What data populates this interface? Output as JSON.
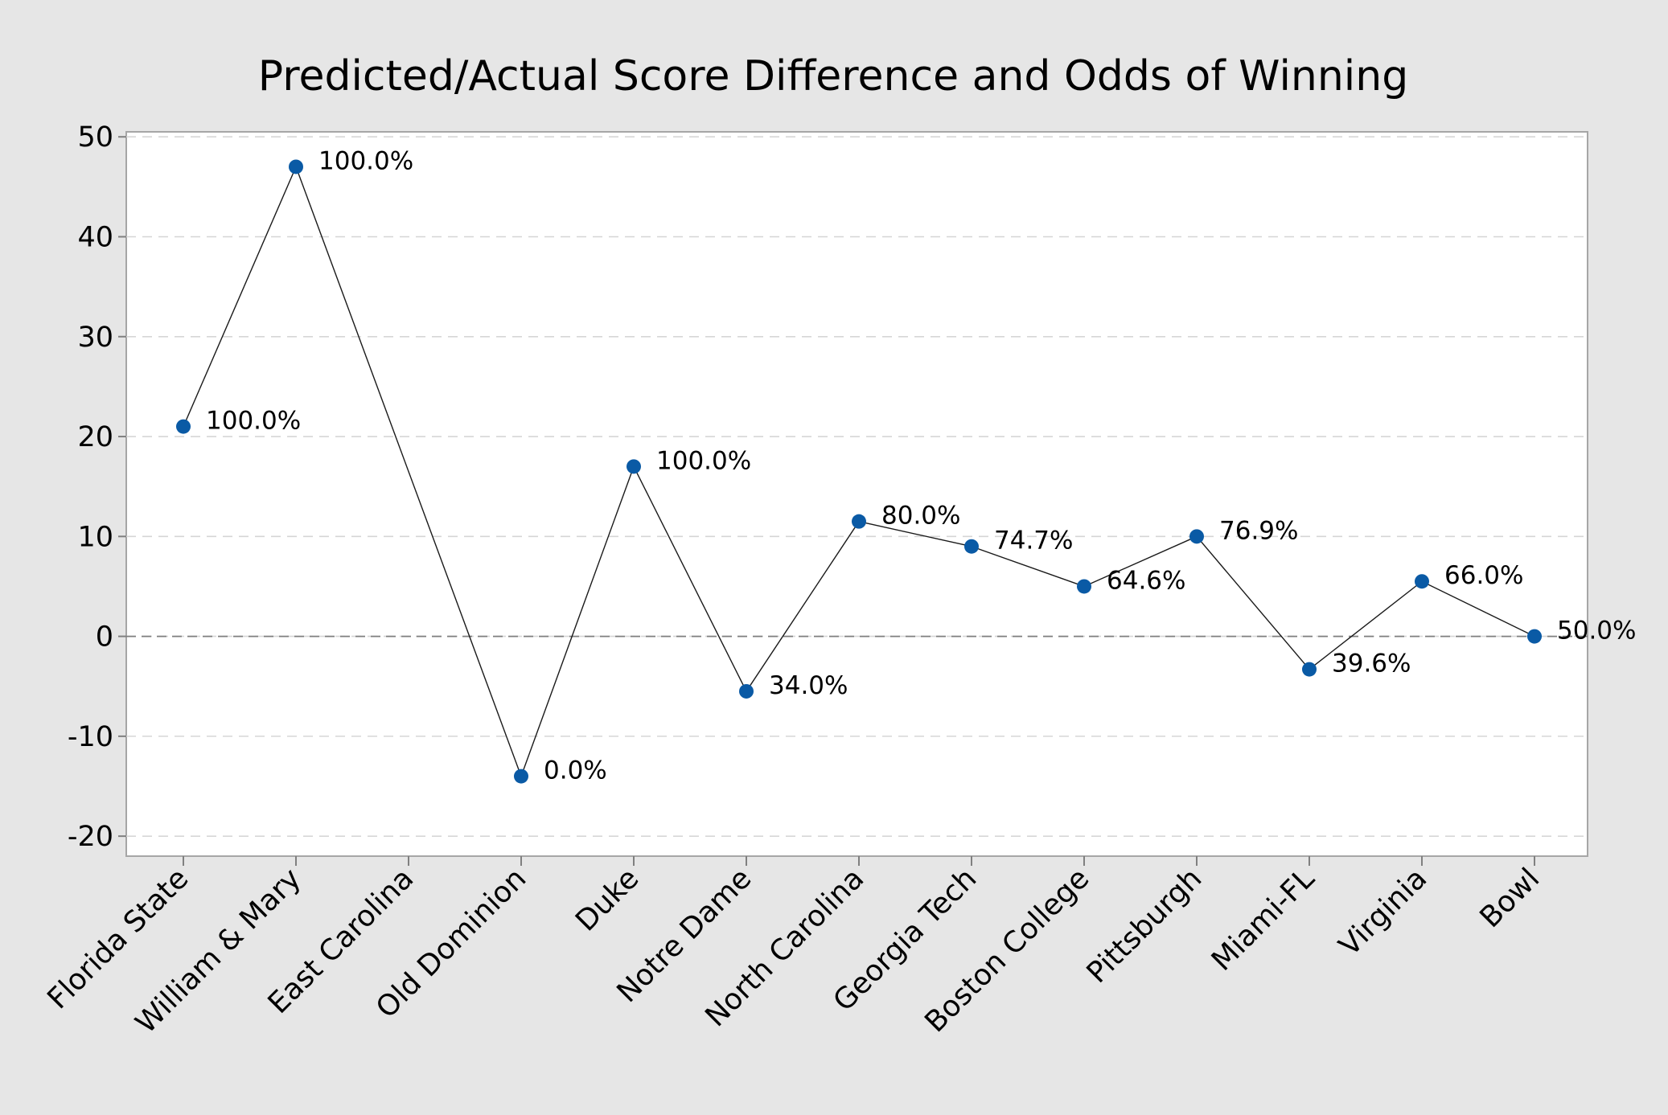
{
  "chart_data": {
    "type": "line",
    "title": "Predicted/Actual Score Difference and Odds of Winning",
    "xlabel": "",
    "ylabel": "",
    "categories": [
      "Florida State",
      "William & Mary",
      "East Carolina",
      "Old Dominion",
      "Duke",
      "Notre Dame",
      "North Carolina",
      "Georgia Tech",
      "Boston College",
      "Pittsburgh",
      "Miami-FL",
      "Virginia",
      "Bowl"
    ],
    "series": [
      {
        "values": [
          21,
          47,
          null,
          -14,
          17,
          -5.5,
          11.5,
          9,
          5,
          10,
          -3.3,
          5.5,
          0
        ],
        "labels": [
          "100.0%",
          "100.0%",
          null,
          "0.0%",
          "100.0%",
          "34.0%",
          "80.0%",
          "74.7%",
          "64.6%",
          "76.9%",
          "39.6%",
          "66.0%",
          "50.0%"
        ],
        "color": "#0a5aa5"
      }
    ],
    "ylim": [
      -22,
      50.5
    ],
    "yticks": [
      50,
      40,
      30,
      20,
      10,
      0,
      -10,
      -20
    ],
    "grid": "horizontal dashed",
    "reference_line": 0,
    "legend": "none"
  }
}
